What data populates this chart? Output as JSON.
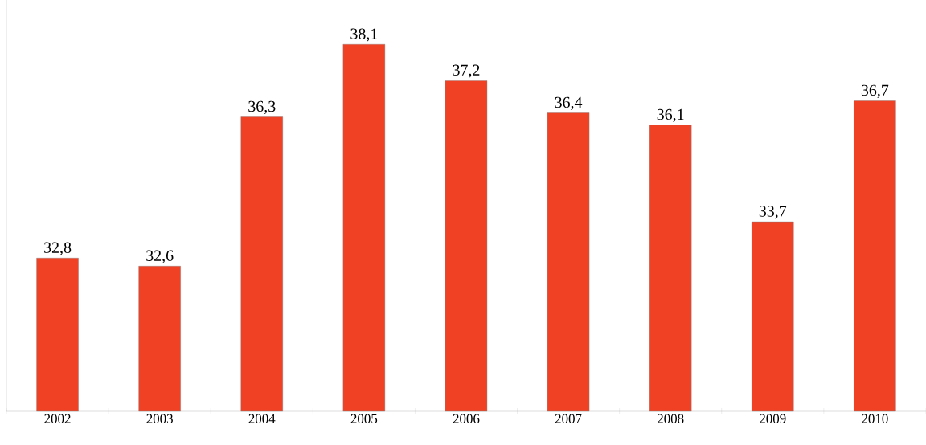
{
  "chart_data": {
    "type": "bar",
    "categories": [
      "2002",
      "2003",
      "2004",
      "2005",
      "2006",
      "2007",
      "2008",
      "2009",
      "2010"
    ],
    "values": [
      32.8,
      32.6,
      36.3,
      38.1,
      37.2,
      36.4,
      36.1,
      33.7,
      36.7
    ],
    "value_labels": [
      "32,8",
      "32,6",
      "36,3",
      "38,1",
      "37,2",
      "36,4",
      "36,1",
      "33,7",
      "36,7"
    ],
    "color": "#f04124",
    "ylim": [
      29,
      39.2
    ],
    "tick_labels": "x",
    "grid": false
  }
}
